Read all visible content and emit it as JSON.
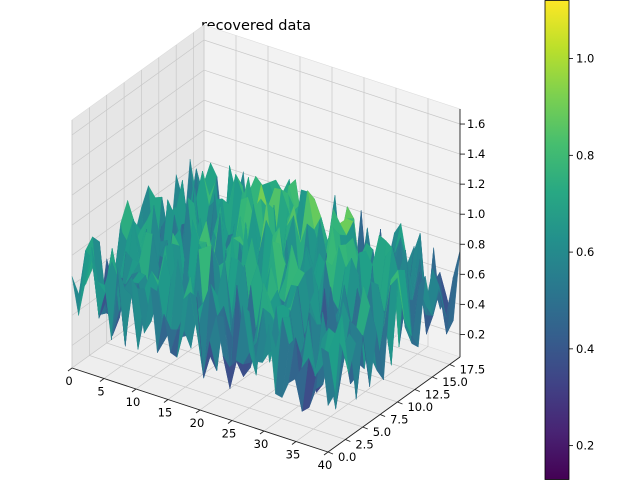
{
  "chart_data": {
    "type": "surface3d",
    "title": "recovered data",
    "xlabel": "",
    "ylabel": "",
    "zlabel": "",
    "x_range": [
      0,
      40
    ],
    "y_range": [
      0,
      19
    ],
    "z_range": [
      0.05,
      1.7
    ],
    "x_ticks": [
      "0",
      "5",
      "10",
      "15",
      "20",
      "25",
      "30",
      "35",
      "40"
    ],
    "y_ticks": [
      "0.0",
      "2.5",
      "5.0",
      "7.5",
      "10.0",
      "12.5",
      "15.0",
      "17.5"
    ],
    "z_ticks": [
      "0.2",
      "0.4",
      "0.6",
      "0.8",
      "1.0",
      "1.2",
      "1.4",
      "1.6"
    ],
    "grid": true,
    "colormap": "viridis",
    "colorbar": {
      "range": [
        0.13,
        1.12
      ],
      "ticks": [
        "0.2",
        "0.4",
        "0.6",
        "0.8",
        "1.0"
      ]
    },
    "surface_stats": {
      "nx": 40,
      "ny": 20,
      "mean": 0.55,
      "noise_amplitude": 0.5,
      "min": 0.13,
      "max": 1.12
    }
  }
}
